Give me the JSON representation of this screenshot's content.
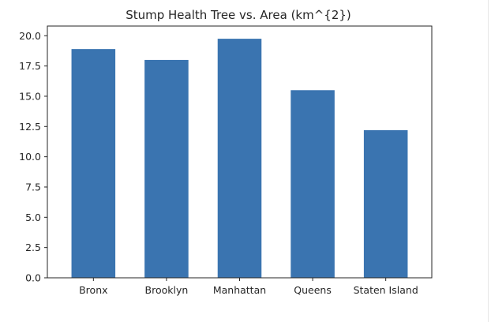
{
  "chart_data": {
    "type": "bar",
    "title": "Stump Health Tree vs. Area (km^{2})",
    "xlabel": "",
    "ylabel": "",
    "categories": [
      "Bronx",
      "Brooklyn",
      "Manhattan",
      "Queens",
      "Staten Island"
    ],
    "values": [
      18.9,
      18.0,
      19.75,
      15.5,
      12.2
    ],
    "ylim": [
      0,
      20.8
    ],
    "yticks": [
      "0.0",
      "2.5",
      "5.0",
      "7.5",
      "10.0",
      "12.5",
      "15.0",
      "17.5",
      "20.0"
    ],
    "ytick_values": [
      0,
      2.5,
      5,
      7.5,
      10,
      12.5,
      15,
      17.5,
      20
    ],
    "grid": false,
    "colors": {
      "bar": "#3a74b0",
      "axis": "#262626"
    }
  }
}
